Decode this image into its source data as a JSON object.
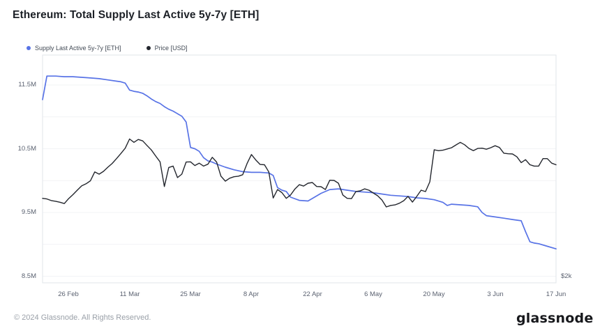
{
  "header": {
    "title": "Ethereum: Total Supply Last Active 5y-7y [ETH]"
  },
  "legend": {
    "items": [
      {
        "label": "Supply Last Active 5y-7y [ETH]",
        "color": "#5873e6"
      },
      {
        "label": "Price [USD]",
        "color": "#23262d"
      }
    ]
  },
  "footer": {
    "copyright": "© 2024 Glassnode. All Rights Reserved.",
    "brand": "glassnode"
  },
  "chart_data": {
    "type": "line",
    "title": "Ethereum: Total Supply Last Active 5y-7y [ETH]",
    "grid": "horizontal-only",
    "legend_position": "top-left",
    "x_range": [
      "2024-02-20",
      "2024-06-17"
    ],
    "x_tick_dates": [
      "02-26",
      "03-11",
      "03-25",
      "04-08",
      "04-22",
      "05-06",
      "05-20",
      "06-03",
      "06-17"
    ],
    "x_tick_labels": [
      "26 Feb",
      "11 Mar",
      "25 Mar",
      "8 Apr",
      "22 Apr",
      "6 May",
      "20 May",
      "3 Jun",
      "17 Jun"
    ],
    "left_axis": {
      "unit": "M ETH",
      "scale": "linear",
      "range": [
        8.4,
        11.97
      ],
      "tick_values": [
        11.5,
        10.5,
        9.5,
        8.5
      ],
      "tick_labels": [
        "11.5M",
        "10.5M",
        "9.5M",
        "8.5M"
      ],
      "gridline_values": [
        8.5,
        9.0,
        9.5,
        10.0,
        10.5,
        11.0,
        11.5
      ]
    },
    "right_axis": {
      "unit": "USD",
      "scale": "log",
      "tick_values": [
        2000
      ],
      "tick_labels": [
        "$2k"
      ]
    },
    "series": [
      {
        "name": "Supply Last Active 5y-7y [ETH]",
        "axis": "left",
        "color": "#5873e6",
        "unit": "M ETH",
        "data": [
          [
            "02-20",
            11.27
          ],
          [
            "02-21",
            11.64
          ],
          [
            "02-23",
            11.64
          ],
          [
            "02-25",
            11.63
          ],
          [
            "02-27",
            11.63
          ],
          [
            "02-29",
            11.62
          ],
          [
            "03-02",
            11.61
          ],
          [
            "03-04",
            11.6
          ],
          [
            "03-06",
            11.58
          ],
          [
            "03-08",
            11.56
          ],
          [
            "03-09",
            11.55
          ],
          [
            "03-10",
            11.53
          ],
          [
            "03-11",
            11.42
          ],
          [
            "03-12",
            11.4
          ],
          [
            "03-13",
            11.39
          ],
          [
            "03-14",
            11.37
          ],
          [
            "03-15",
            11.33
          ],
          [
            "03-16",
            11.28
          ],
          [
            "03-17",
            11.24
          ],
          [
            "03-18",
            11.21
          ],
          [
            "03-19",
            11.16
          ],
          [
            "03-20",
            11.12
          ],
          [
            "03-21",
            11.09
          ],
          [
            "03-22",
            11.05
          ],
          [
            "03-23",
            11.01
          ],
          [
            "03-24",
            10.92
          ],
          [
            "03-25",
            10.52
          ],
          [
            "03-26",
            10.5
          ],
          [
            "03-27",
            10.46
          ],
          [
            "03-28",
            10.36
          ],
          [
            "03-29",
            10.31
          ],
          [
            "03-30",
            10.29
          ],
          [
            "03-31",
            10.26
          ],
          [
            "04-02",
            10.21
          ],
          [
            "04-04",
            10.17
          ],
          [
            "04-06",
            10.14
          ],
          [
            "04-08",
            10.13
          ],
          [
            "04-10",
            10.13
          ],
          [
            "04-12",
            10.12
          ],
          [
            "04-13",
            10.08
          ],
          [
            "04-14",
            9.89
          ],
          [
            "04-15",
            9.85
          ],
          [
            "04-16",
            9.83
          ],
          [
            "04-17",
            9.74
          ],
          [
            "04-19",
            9.69
          ],
          [
            "04-21",
            9.68
          ],
          [
            "04-22",
            9.72
          ],
          [
            "04-24",
            9.8
          ],
          [
            "04-26",
            9.86
          ],
          [
            "04-28",
            9.87
          ],
          [
            "04-30",
            9.85
          ],
          [
            "05-02",
            9.83
          ],
          [
            "05-04",
            9.82
          ],
          [
            "05-06",
            9.81
          ],
          [
            "05-08",
            9.79
          ],
          [
            "05-10",
            9.77
          ],
          [
            "05-12",
            9.76
          ],
          [
            "05-14",
            9.75
          ],
          [
            "05-16",
            9.73
          ],
          [
            "05-18",
            9.72
          ],
          [
            "05-20",
            9.7
          ],
          [
            "05-22",
            9.66
          ],
          [
            "05-23",
            9.61
          ],
          [
            "05-24",
            9.63
          ],
          [
            "05-26",
            9.62
          ],
          [
            "05-28",
            9.61
          ],
          [
            "05-30",
            9.59
          ],
          [
            "05-31",
            9.5
          ],
          [
            "06-01",
            9.45
          ],
          [
            "06-03",
            9.43
          ],
          [
            "06-05",
            9.41
          ],
          [
            "06-07",
            9.39
          ],
          [
            "06-09",
            9.37
          ],
          [
            "06-10",
            9.2
          ],
          [
            "06-11",
            9.04
          ],
          [
            "06-12",
            9.02
          ],
          [
            "06-13",
            9.01
          ],
          [
            "06-15",
            8.97
          ],
          [
            "06-17",
            8.93
          ]
        ]
      },
      {
        "name": "Price [USD]",
        "axis": "right",
        "color": "#23262d",
        "unit": "USD",
        "data": [
          [
            "02-20",
            3000
          ],
          [
            "02-21",
            2990
          ],
          [
            "02-22",
            2965
          ],
          [
            "02-23",
            2955
          ],
          [
            "02-24",
            2940
          ],
          [
            "02-25",
            2920
          ],
          [
            "02-26",
            2995
          ],
          [
            "02-27",
            3060
          ],
          [
            "02-28",
            3130
          ],
          [
            "02-29",
            3200
          ],
          [
            "03-01",
            3235
          ],
          [
            "03-02",
            3285
          ],
          [
            "03-03",
            3440
          ],
          [
            "03-04",
            3400
          ],
          [
            "03-05",
            3450
          ],
          [
            "03-06",
            3525
          ],
          [
            "03-07",
            3595
          ],
          [
            "03-08",
            3685
          ],
          [
            "03-09",
            3785
          ],
          [
            "03-10",
            3890
          ],
          [
            "03-11",
            4080
          ],
          [
            "03-12",
            4010
          ],
          [
            "03-13",
            4070
          ],
          [
            "03-14",
            4040
          ],
          [
            "03-15",
            3945
          ],
          [
            "03-16",
            3855
          ],
          [
            "03-17",
            3735
          ],
          [
            "03-18",
            3625
          ],
          [
            "03-19",
            3190
          ],
          [
            "03-20",
            3520
          ],
          [
            "03-21",
            3545
          ],
          [
            "03-22",
            3340
          ],
          [
            "03-23",
            3400
          ],
          [
            "03-24",
            3620
          ],
          [
            "03-25",
            3625
          ],
          [
            "03-26",
            3556
          ],
          [
            "03-27",
            3600
          ],
          [
            "03-28",
            3545
          ],
          [
            "03-29",
            3580
          ],
          [
            "03-30",
            3710
          ],
          [
            "03-31",
            3620
          ],
          [
            "04-01",
            3365
          ],
          [
            "04-02",
            3280
          ],
          [
            "04-03",
            3330
          ],
          [
            "04-04",
            3355
          ],
          [
            "04-05",
            3365
          ],
          [
            "04-06",
            3390
          ],
          [
            "04-07",
            3595
          ],
          [
            "04-08",
            3765
          ],
          [
            "04-09",
            3660
          ],
          [
            "04-10",
            3575
          ],
          [
            "04-11",
            3570
          ],
          [
            "04-12",
            3440
          ],
          [
            "04-13",
            3005
          ],
          [
            "04-14",
            3140
          ],
          [
            "04-15",
            3090
          ],
          [
            "04-16",
            3000
          ],
          [
            "04-17",
            3052
          ],
          [
            "04-18",
            3150
          ],
          [
            "04-19",
            3220
          ],
          [
            "04-20",
            3197
          ],
          [
            "04-21",
            3244
          ],
          [
            "04-22",
            3256
          ],
          [
            "04-23",
            3190
          ],
          [
            "04-24",
            3186
          ],
          [
            "04-25",
            3140
          ],
          [
            "04-26",
            3295
          ],
          [
            "04-27",
            3292
          ],
          [
            "04-28",
            3244
          ],
          [
            "04-29",
            3052
          ],
          [
            "04-30",
            3000
          ],
          [
            "05-01",
            2995
          ],
          [
            "05-02",
            3107
          ],
          [
            "05-03",
            3118
          ],
          [
            "05-04",
            3151
          ],
          [
            "05-05",
            3129
          ],
          [
            "05-06",
            3084
          ],
          [
            "05-07",
            3040
          ],
          [
            "05-08",
            2974
          ],
          [
            "05-09",
            2870
          ],
          [
            "05-10",
            2891
          ],
          [
            "05-11",
            2900
          ],
          [
            "05-12",
            2925
          ],
          [
            "05-13",
            2963
          ],
          [
            "05-14",
            3030
          ],
          [
            "05-15",
            2942
          ],
          [
            "05-16",
            3030
          ],
          [
            "05-17",
            3129
          ],
          [
            "05-18",
            3107
          ],
          [
            "05-19",
            3268
          ],
          [
            "05-20",
            3858
          ],
          [
            "05-21",
            3840
          ],
          [
            "05-22",
            3850
          ],
          [
            "05-23",
            3875
          ],
          [
            "05-24",
            3900
          ],
          [
            "05-25",
            3955
          ],
          [
            "05-26",
            4010
          ],
          [
            "05-27",
            3960
          ],
          [
            "05-28",
            3885
          ],
          [
            "05-29",
            3840
          ],
          [
            "05-30",
            3885
          ],
          [
            "05-31",
            3890
          ],
          [
            "06-01",
            3870
          ],
          [
            "06-02",
            3900
          ],
          [
            "06-03",
            3940
          ],
          [
            "06-04",
            3905
          ],
          [
            "06-05",
            3790
          ],
          [
            "06-06",
            3780
          ],
          [
            "06-07",
            3775
          ],
          [
            "06-08",
            3720
          ],
          [
            "06-09",
            3610
          ],
          [
            "06-10",
            3665
          ],
          [
            "06-11",
            3570
          ],
          [
            "06-12",
            3545
          ],
          [
            "06-13",
            3545
          ],
          [
            "06-14",
            3685
          ],
          [
            "06-15",
            3685
          ],
          [
            "06-16",
            3600
          ],
          [
            "06-17",
            3570
          ]
        ]
      }
    ]
  }
}
